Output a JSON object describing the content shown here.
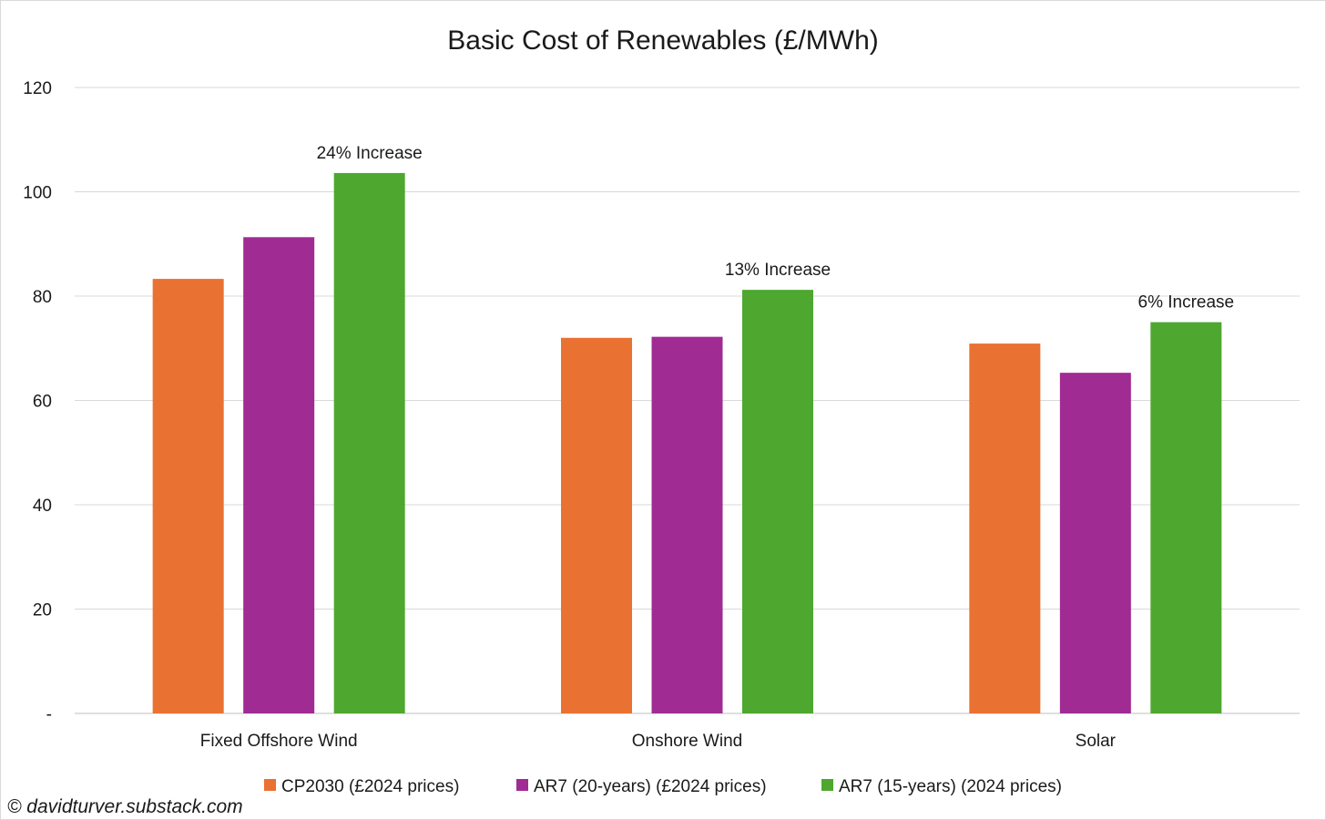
{
  "chart_data": {
    "type": "bar",
    "title": "Basic Cost of Renewables (£/MWh)",
    "categories": [
      "Fixed Offshore Wind",
      "Onshore Wind",
      "Solar"
    ],
    "series": [
      {
        "name": "CP2030 (£2024 prices)",
        "color": "#e97132",
        "values": [
          83.3,
          72.0,
          70.9
        ]
      },
      {
        "name": "AR7 (20-years) (£2024 prices)",
        "color": "#a02b93",
        "values": [
          91.3,
          72.2,
          65.3
        ]
      },
      {
        "name": "AR7 (15-years) (2024 prices)",
        "color": "#4ea72e",
        "values": [
          103.6,
          81.2,
          75.0
        ]
      }
    ],
    "annotations": [
      "24% Increase",
      "13% Increase",
      "6% Increase"
    ],
    "yticks": [
      {
        "value": 0,
        "label": "-"
      },
      {
        "value": 20,
        "label": "20"
      },
      {
        "value": 40,
        "label": "40"
      },
      {
        "value": 60,
        "label": "60"
      },
      {
        "value": 80,
        "label": "80"
      },
      {
        "value": 100,
        "label": "100"
      },
      {
        "value": 120,
        "label": "120"
      }
    ],
    "ylim": [
      0,
      120
    ],
    "grid": true,
    "legend_position": "bottom",
    "xlabel": "",
    "ylabel": ""
  },
  "credit": "© davidturver.substack.com"
}
